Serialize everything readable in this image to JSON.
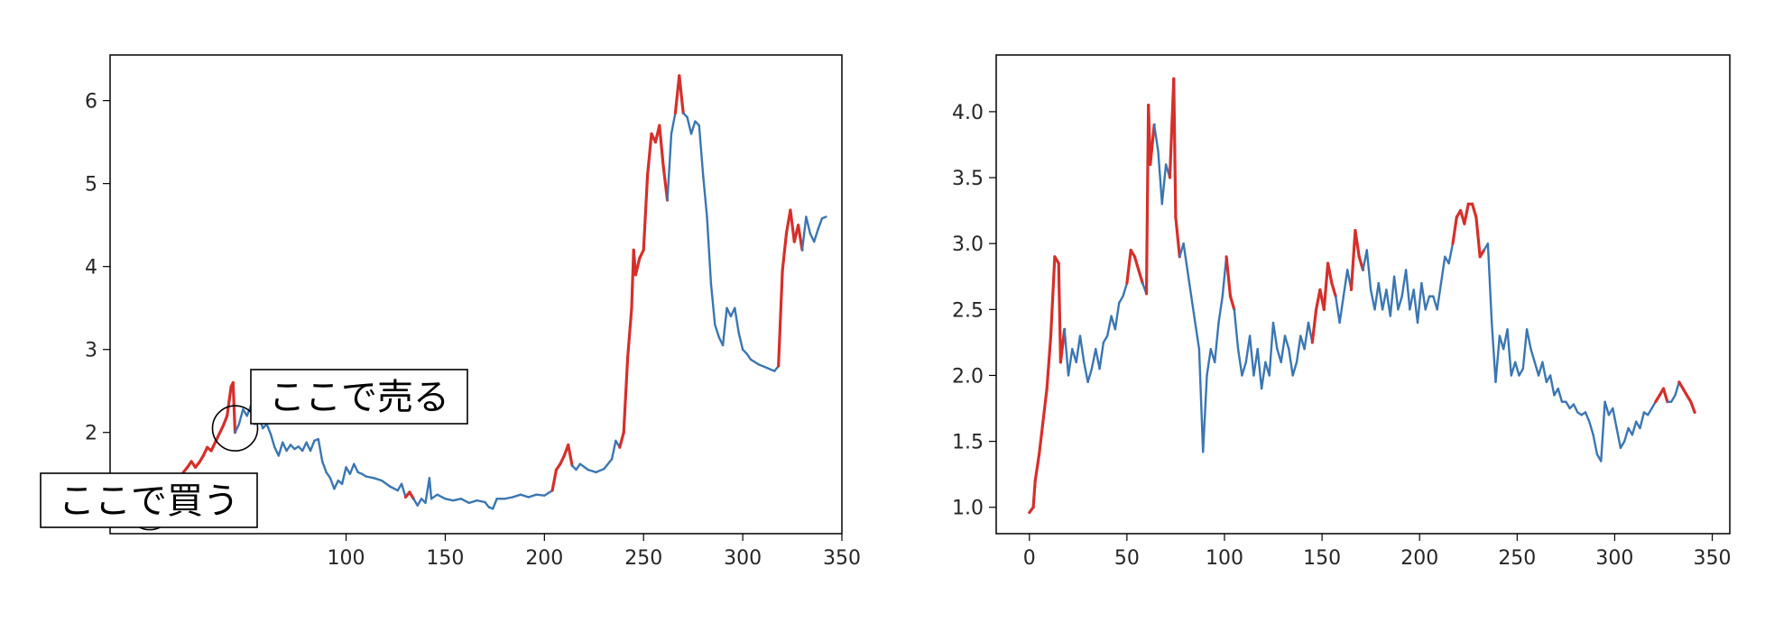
{
  "colors": {
    "base": "#3a76b2",
    "highlight": "#d62f2a",
    "axis": "#000000",
    "text": "#262626"
  },
  "chart_data": [
    {
      "type": "line",
      "title": "",
      "xlabel": "",
      "ylabel": "",
      "xlim": [
        -19,
        350
      ],
      "ylim": [
        0.78,
        6.55
      ],
      "xticks": [
        100,
        150,
        200,
        250,
        300,
        350
      ],
      "yticks": [
        1,
        2,
        3,
        4,
        5,
        6
      ],
      "grid": false,
      "keypoints": [
        [
          0,
          1.0
        ],
        [
          2,
          1.02
        ],
        [
          4,
          1.12
        ],
        [
          6,
          1.24
        ],
        [
          8,
          1.28
        ],
        [
          10,
          1.22
        ],
        [
          12,
          1.3
        ],
        [
          14,
          1.36
        ],
        [
          16,
          1.44
        ],
        [
          18,
          1.52
        ],
        [
          20,
          1.58
        ],
        [
          22,
          1.65
        ],
        [
          24,
          1.58
        ],
        [
          26,
          1.64
        ],
        [
          28,
          1.72
        ],
        [
          30,
          1.82
        ],
        [
          32,
          1.78
        ],
        [
          34,
          1.88
        ],
        [
          36,
          1.98
        ],
        [
          38,
          2.08
        ],
        [
          40,
          2.2
        ],
        [
          42,
          2.55
        ],
        [
          43,
          2.6
        ],
        [
          44,
          2.0
        ],
        [
          46,
          2.1
        ],
        [
          48,
          2.28
        ],
        [
          50,
          2.2
        ],
        [
          52,
          2.32
        ],
        [
          54,
          2.1
        ],
        [
          56,
          2.2
        ],
        [
          58,
          2.05
        ],
        [
          60,
          2.1
        ],
        [
          62,
          1.98
        ],
        [
          64,
          1.82
        ],
        [
          66,
          1.72
        ],
        [
          68,
          1.88
        ],
        [
          70,
          1.78
        ],
        [
          72,
          1.85
        ],
        [
          74,
          1.8
        ],
        [
          76,
          1.83
        ],
        [
          78,
          1.78
        ],
        [
          80,
          1.88
        ],
        [
          82,
          1.78
        ],
        [
          84,
          1.9
        ],
        [
          86,
          1.92
        ],
        [
          88,
          1.65
        ],
        [
          90,
          1.52
        ],
        [
          92,
          1.45
        ],
        [
          94,
          1.32
        ],
        [
          96,
          1.42
        ],
        [
          98,
          1.38
        ],
        [
          100,
          1.58
        ],
        [
          102,
          1.5
        ],
        [
          104,
          1.62
        ],
        [
          106,
          1.52
        ],
        [
          108,
          1.5
        ],
        [
          110,
          1.47
        ],
        [
          114,
          1.45
        ],
        [
          118,
          1.42
        ],
        [
          122,
          1.35
        ],
        [
          126,
          1.3
        ],
        [
          128,
          1.38
        ],
        [
          130,
          1.22
        ],
        [
          132,
          1.28
        ],
        [
          134,
          1.2
        ],
        [
          136,
          1.12
        ],
        [
          138,
          1.2
        ],
        [
          140,
          1.15
        ],
        [
          142,
          1.45
        ],
        [
          143,
          1.2
        ],
        [
          146,
          1.25
        ],
        [
          150,
          1.2
        ],
        [
          154,
          1.18
        ],
        [
          158,
          1.2
        ],
        [
          162,
          1.15
        ],
        [
          166,
          1.18
        ],
        [
          170,
          1.16
        ],
        [
          172,
          1.1
        ],
        [
          174,
          1.08
        ],
        [
          176,
          1.2
        ],
        [
          180,
          1.2
        ],
        [
          184,
          1.22
        ],
        [
          188,
          1.25
        ],
        [
          192,
          1.22
        ],
        [
          196,
          1.25
        ],
        [
          200,
          1.24
        ],
        [
          204,
          1.3
        ],
        [
          206,
          1.55
        ],
        [
          208,
          1.62
        ],
        [
          210,
          1.72
        ],
        [
          212,
          1.85
        ],
        [
          214,
          1.6
        ],
        [
          216,
          1.55
        ],
        [
          218,
          1.62
        ],
        [
          222,
          1.55
        ],
        [
          226,
          1.52
        ],
        [
          230,
          1.56
        ],
        [
          234,
          1.68
        ],
        [
          236,
          1.9
        ],
        [
          238,
          1.82
        ],
        [
          240,
          2.0
        ],
        [
          242,
          2.9
        ],
        [
          244,
          3.5
        ],
        [
          245,
          4.2
        ],
        [
          246,
          3.9
        ],
        [
          248,
          4.1
        ],
        [
          250,
          4.2
        ],
        [
          252,
          5.1
        ],
        [
          254,
          5.6
        ],
        [
          256,
          5.5
        ],
        [
          258,
          5.7
        ],
        [
          260,
          5.2
        ],
        [
          262,
          4.8
        ],
        [
          264,
          5.6
        ],
        [
          266,
          5.85
        ],
        [
          268,
          6.3
        ],
        [
          270,
          5.85
        ],
        [
          272,
          5.8
        ],
        [
          274,
          5.6
        ],
        [
          276,
          5.75
        ],
        [
          278,
          5.7
        ],
        [
          280,
          5.1
        ],
        [
          282,
          4.6
        ],
        [
          284,
          3.8
        ],
        [
          286,
          3.3
        ],
        [
          288,
          3.15
        ],
        [
          290,
          3.05
        ],
        [
          292,
          3.5
        ],
        [
          294,
          3.4
        ],
        [
          296,
          3.5
        ],
        [
          298,
          3.2
        ],
        [
          300,
          3.0
        ],
        [
          302,
          2.95
        ],
        [
          304,
          2.88
        ],
        [
          308,
          2.82
        ],
        [
          312,
          2.78
        ],
        [
          314,
          2.76
        ],
        [
          316,
          2.74
        ],
        [
          318,
          2.8
        ],
        [
          320,
          3.95
        ],
        [
          322,
          4.4
        ],
        [
          324,
          4.68
        ],
        [
          326,
          4.3
        ],
        [
          328,
          4.5
        ],
        [
          330,
          4.2
        ],
        [
          332,
          4.6
        ],
        [
          334,
          4.4
        ],
        [
          336,
          4.3
        ],
        [
          338,
          4.45
        ],
        [
          340,
          4.58
        ],
        [
          342,
          4.6
        ]
      ],
      "highlight_ranges": [
        [
          3,
          44
        ],
        [
          130,
          133
        ],
        [
          204,
          213
        ],
        [
          238,
          262
        ],
        [
          267,
          270
        ],
        [
          319,
          330
        ]
      ],
      "annotations": [
        {
          "label": "ここで買う",
          "x": 1,
          "y": 1.1
        },
        {
          "label": "ここで売る",
          "x": 44,
          "y": 2.05
        }
      ]
    },
    {
      "type": "line",
      "title": "",
      "xlabel": "",
      "ylabel": "",
      "xlim": [
        -17,
        359
      ],
      "ylim": [
        0.8,
        4.43
      ],
      "xticks": [
        0,
        50,
        100,
        150,
        200,
        250,
        300,
        350
      ],
      "yticks": [
        1.0,
        1.5,
        2.0,
        2.5,
        3.0,
        3.5,
        4.0
      ],
      "grid": false,
      "keypoints": [
        [
          0,
          0.96
        ],
        [
          2,
          1.0
        ],
        [
          3,
          1.2
        ],
        [
          5,
          1.4
        ],
        [
          7,
          1.65
        ],
        [
          9,
          1.9
        ],
        [
          11,
          2.3
        ],
        [
          13,
          2.9
        ],
        [
          15,
          2.85
        ],
        [
          16,
          2.1
        ],
        [
          18,
          2.35
        ],
        [
          20,
          2.0
        ],
        [
          22,
          2.2
        ],
        [
          24,
          2.1
        ],
        [
          26,
          2.3
        ],
        [
          28,
          2.1
        ],
        [
          30,
          1.95
        ],
        [
          32,
          2.05
        ],
        [
          34,
          2.2
        ],
        [
          36,
          2.05
        ],
        [
          38,
          2.25
        ],
        [
          40,
          2.3
        ],
        [
          42,
          2.45
        ],
        [
          44,
          2.35
        ],
        [
          46,
          2.55
        ],
        [
          48,
          2.6
        ],
        [
          50,
          2.7
        ],
        [
          52,
          2.95
        ],
        [
          54,
          2.9
        ],
        [
          56,
          2.8
        ],
        [
          58,
          2.7
        ],
        [
          60,
          2.62
        ],
        [
          61,
          4.05
        ],
        [
          62,
          3.6
        ],
        [
          64,
          3.9
        ],
        [
          66,
          3.7
        ],
        [
          68,
          3.3
        ],
        [
          70,
          3.6
        ],
        [
          72,
          3.5
        ],
        [
          74,
          4.25
        ],
        [
          75,
          3.2
        ],
        [
          77,
          2.9
        ],
        [
          79,
          3.0
        ],
        [
          81,
          2.8
        ],
        [
          83,
          2.6
        ],
        [
          85,
          2.4
        ],
        [
          87,
          2.2
        ],
        [
          89,
          1.42
        ],
        [
          91,
          2.0
        ],
        [
          93,
          2.2
        ],
        [
          95,
          2.1
        ],
        [
          97,
          2.4
        ],
        [
          99,
          2.6
        ],
        [
          101,
          2.9
        ],
        [
          103,
          2.6
        ],
        [
          105,
          2.5
        ],
        [
          107,
          2.2
        ],
        [
          109,
          2.0
        ],
        [
          111,
          2.1
        ],
        [
          113,
          2.3
        ],
        [
          115,
          2.0
        ],
        [
          117,
          2.2
        ],
        [
          119,
          1.9
        ],
        [
          121,
          2.1
        ],
        [
          123,
          2.0
        ],
        [
          125,
          2.4
        ],
        [
          127,
          2.2
        ],
        [
          129,
          2.1
        ],
        [
          131,
          2.3
        ],
        [
          133,
          2.2
        ],
        [
          135,
          2.0
        ],
        [
          137,
          2.1
        ],
        [
          139,
          2.3
        ],
        [
          141,
          2.2
        ],
        [
          143,
          2.4
        ],
        [
          145,
          2.25
        ],
        [
          147,
          2.5
        ],
        [
          149,
          2.65
        ],
        [
          151,
          2.5
        ],
        [
          153,
          2.85
        ],
        [
          155,
          2.7
        ],
        [
          157,
          2.6
        ],
        [
          159,
          2.4
        ],
        [
          161,
          2.6
        ],
        [
          163,
          2.8
        ],
        [
          165,
          2.65
        ],
        [
          167,
          3.1
        ],
        [
          169,
          2.9
        ],
        [
          171,
          2.8
        ],
        [
          173,
          2.95
        ],
        [
          175,
          2.65
        ],
        [
          177,
          2.5
        ],
        [
          179,
          2.7
        ],
        [
          181,
          2.5
        ],
        [
          183,
          2.65
        ],
        [
          185,
          2.45
        ],
        [
          187,
          2.75
        ],
        [
          189,
          2.5
        ],
        [
          191,
          2.6
        ],
        [
          193,
          2.8
        ],
        [
          195,
          2.5
        ],
        [
          197,
          2.65
        ],
        [
          199,
          2.4
        ],
        [
          201,
          2.7
        ],
        [
          203,
          2.5
        ],
        [
          205,
          2.6
        ],
        [
          207,
          2.6
        ],
        [
          209,
          2.5
        ],
        [
          211,
          2.7
        ],
        [
          213,
          2.9
        ],
        [
          215,
          2.85
        ],
        [
          217,
          3.0
        ],
        [
          219,
          3.2
        ],
        [
          221,
          3.25
        ],
        [
          223,
          3.15
        ],
        [
          225,
          3.3
        ],
        [
          227,
          3.3
        ],
        [
          229,
          3.2
        ],
        [
          231,
          2.9
        ],
        [
          233,
          2.95
        ],
        [
          235,
          3.0
        ],
        [
          237,
          2.4
        ],
        [
          239,
          1.95
        ],
        [
          241,
          2.3
        ],
        [
          243,
          2.2
        ],
        [
          245,
          2.35
        ],
        [
          247,
          2.0
        ],
        [
          249,
          2.1
        ],
        [
          251,
          2.0
        ],
        [
          253,
          2.05
        ],
        [
          255,
          2.35
        ],
        [
          257,
          2.2
        ],
        [
          259,
          2.1
        ],
        [
          261,
          2.0
        ],
        [
          263,
          2.1
        ],
        [
          265,
          1.95
        ],
        [
          267,
          2.0
        ],
        [
          269,
          1.85
        ],
        [
          271,
          1.9
        ],
        [
          273,
          1.8
        ],
        [
          275,
          1.8
        ],
        [
          277,
          1.75
        ],
        [
          279,
          1.78
        ],
        [
          281,
          1.72
        ],
        [
          283,
          1.7
        ],
        [
          285,
          1.72
        ],
        [
          287,
          1.65
        ],
        [
          289,
          1.55
        ],
        [
          291,
          1.4
        ],
        [
          293,
          1.35
        ],
        [
          295,
          1.8
        ],
        [
          297,
          1.7
        ],
        [
          299,
          1.75
        ],
        [
          301,
          1.6
        ],
        [
          303,
          1.45
        ],
        [
          305,
          1.5
        ],
        [
          307,
          1.6
        ],
        [
          309,
          1.55
        ],
        [
          311,
          1.65
        ],
        [
          313,
          1.6
        ],
        [
          315,
          1.72
        ],
        [
          317,
          1.7
        ],
        [
          319,
          1.75
        ],
        [
          321,
          1.8
        ],
        [
          323,
          1.85
        ],
        [
          325,
          1.9
        ],
        [
          327,
          1.8
        ],
        [
          329,
          1.8
        ],
        [
          331,
          1.85
        ],
        [
          333,
          1.95
        ],
        [
          335,
          1.9
        ],
        [
          337,
          1.85
        ],
        [
          339,
          1.8
        ],
        [
          341,
          1.72
        ]
      ],
      "highlight_ranges": [
        [
          1,
          17
        ],
        [
          51,
          58
        ],
        [
          60,
          63
        ],
        [
          73,
          76
        ],
        [
          101,
          104
        ],
        [
          146,
          156
        ],
        [
          166,
          171
        ],
        [
          218,
          232
        ],
        [
          322,
          327
        ],
        [
          334,
          341
        ]
      ],
      "annotations": []
    }
  ]
}
